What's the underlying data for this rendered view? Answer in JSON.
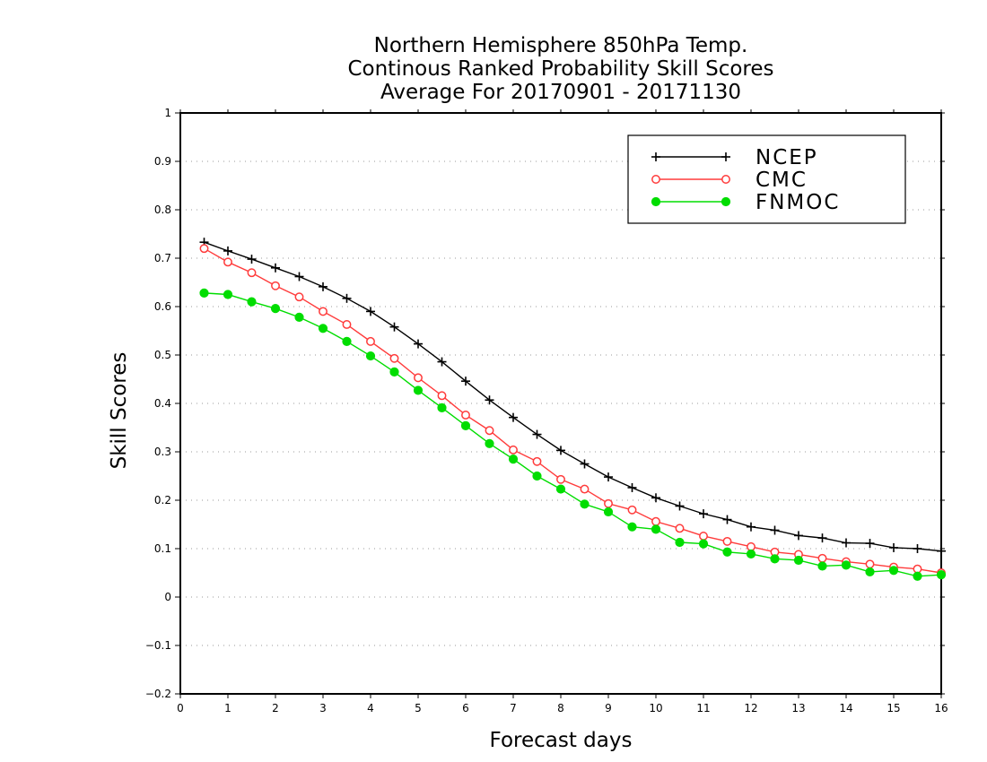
{
  "chart_data": {
    "type": "line",
    "title_lines": [
      "Northern Hemisphere 850hPa Temp.",
      "Continous Ranked Probability Skill Scores",
      "Average For 20170901 - 20171130"
    ],
    "xlabel": "Forecast days",
    "ylabel": "Skill Scores",
    "xlim": [
      0,
      16
    ],
    "ylim": [
      -0.2,
      1
    ],
    "xticks": [
      "0",
      "1",
      "2",
      "3",
      "4",
      "5",
      "6",
      "7",
      "8",
      "9",
      "10",
      "11",
      "12",
      "13",
      "14",
      "15",
      "16"
    ],
    "yticks": [
      "−0.2",
      "−0.1",
      "0",
      "0.1",
      "0.2",
      "0.3",
      "0.4",
      "0.5",
      "0.6",
      "0.7",
      "0.8",
      "0.9",
      "1"
    ],
    "grid": "horizontal-dotted",
    "legend_position": "top-right",
    "x": [
      0.5,
      1,
      1.5,
      2,
      2.5,
      3,
      3.5,
      4,
      4.5,
      5,
      5.5,
      6,
      6.5,
      7,
      7.5,
      8,
      8.5,
      9,
      9.5,
      10,
      10.5,
      11,
      11.5,
      12,
      12.5,
      13,
      13.5,
      14,
      14.5,
      15,
      15.5,
      16
    ],
    "series": [
      {
        "name": "NCEP",
        "color": "#000000",
        "marker": "plus",
        "values": [
          0.733,
          0.715,
          0.698,
          0.68,
          0.662,
          0.641,
          0.617,
          0.59,
          0.558,
          0.523,
          0.486,
          0.446,
          0.407,
          0.371,
          0.336,
          0.303,
          0.275,
          0.248,
          0.226,
          0.205,
          0.188,
          0.172,
          0.16,
          0.145,
          0.138,
          0.127,
          0.122,
          0.112,
          0.111,
          0.102,
          0.1,
          0.095
        ]
      },
      {
        "name": "CMC",
        "color": "#ff3b3b",
        "marker": "open-circle",
        "values": [
          0.72,
          0.692,
          0.67,
          0.643,
          0.62,
          0.59,
          0.563,
          0.528,
          0.493,
          0.453,
          0.416,
          0.376,
          0.344,
          0.304,
          0.28,
          0.243,
          0.223,
          0.193,
          0.18,
          0.156,
          0.142,
          0.126,
          0.115,
          0.104,
          0.093,
          0.088,
          0.08,
          0.073,
          0.068,
          0.062,
          0.058,
          0.05
        ]
      },
      {
        "name": "FNMOC",
        "color": "#00dd00",
        "marker": "filled-circle",
        "values": [
          0.628,
          0.625,
          0.61,
          0.596,
          0.578,
          0.555,
          0.528,
          0.498,
          0.465,
          0.427,
          0.391,
          0.354,
          0.317,
          0.285,
          0.25,
          0.223,
          0.192,
          0.176,
          0.145,
          0.14,
          0.113,
          0.11,
          0.093,
          0.089,
          0.079,
          0.076,
          0.064,
          0.066,
          0.052,
          0.055,
          0.043,
          0.046
        ]
      }
    ]
  }
}
